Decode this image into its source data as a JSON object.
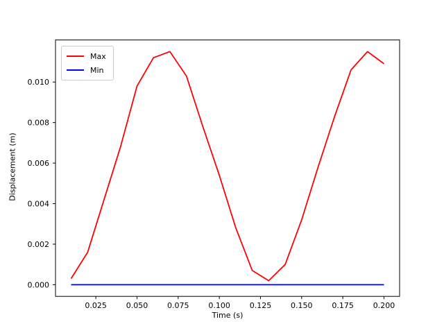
{
  "figure": {
    "background": "#ffffff"
  },
  "chart_data": {
    "type": "line",
    "title": "",
    "xlabel": "Time (s)",
    "ylabel": "Displacement (m)",
    "grid": false,
    "legend_position": "upper-left",
    "x": [
      0.01,
      0.02,
      0.03,
      0.04,
      0.05,
      0.06,
      0.07,
      0.08,
      0.09,
      0.1,
      0.11,
      0.12,
      0.13,
      0.14,
      0.15,
      0.16,
      0.17,
      0.18,
      0.19,
      0.2
    ],
    "series": [
      {
        "name": "Max",
        "color": "#ff0000",
        "values": [
          0.0003,
          0.0016,
          0.0042,
          0.0068,
          0.0098,
          0.0112,
          0.0115,
          0.0103,
          0.0078,
          0.0054,
          0.0028,
          0.0007,
          0.0002,
          0.001,
          0.0032,
          0.0058,
          0.0083,
          0.0106,
          0.0115,
          0.0109
        ]
      },
      {
        "name": "Min",
        "color": "#0000ff",
        "values": [
          0.0,
          0.0,
          0.0,
          0.0,
          0.0,
          0.0,
          0.0,
          0.0,
          0.0,
          0.0,
          0.0,
          0.0,
          0.0,
          0.0,
          0.0,
          0.0,
          0.0,
          0.0,
          0.0,
          0.0
        ]
      }
    ],
    "xlim": [
      0.0005,
      0.2095
    ],
    "ylim": [
      -0.000575,
      0.012075
    ],
    "xtick_labels": [
      "0.025",
      "0.050",
      "0.075",
      "0.100",
      "0.125",
      "0.150",
      "0.175",
      "0.200"
    ],
    "ytick_labels": [
      "0.000",
      "0.002",
      "0.004",
      "0.006",
      "0.008",
      "0.010"
    ]
  },
  "legend": {
    "entries": [
      {
        "label": "Max",
        "color": "#ff0000"
      },
      {
        "label": "Min",
        "color": "#0000ff"
      }
    ]
  }
}
